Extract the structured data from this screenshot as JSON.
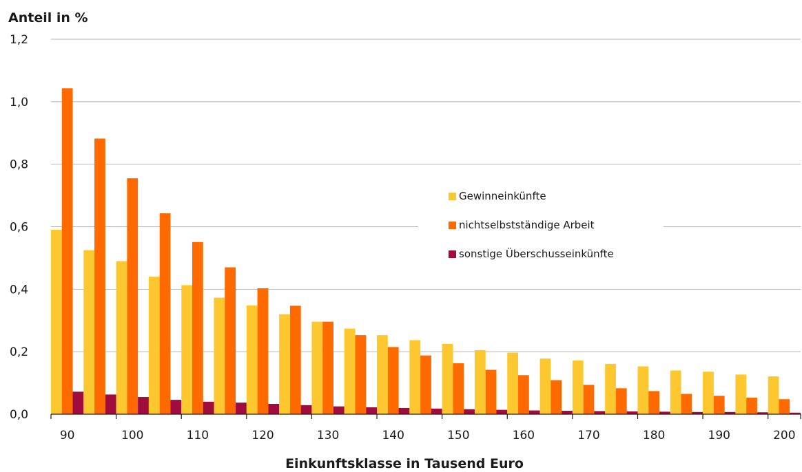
{
  "chart_data": {
    "type": "bar",
    "title": "",
    "ylabel": "Anteil in %",
    "xlabel": "Einkunftsklasse in Tausend Euro",
    "ylim": [
      0,
      1.2
    ],
    "yticks": [
      0.0,
      0.2,
      0.4,
      0.6,
      0.8,
      1.0,
      1.2
    ],
    "ytick_labels": [
      "0,0",
      "0,2",
      "0,4",
      "0,6",
      "0,8",
      "1,0",
      "1,2"
    ],
    "x": [
      90,
      95,
      100,
      105,
      110,
      115,
      120,
      125,
      130,
      135,
      140,
      145,
      150,
      155,
      160,
      165,
      170,
      175,
      180,
      185,
      190,
      195,
      200
    ],
    "xticks": [
      90,
      100,
      110,
      120,
      130,
      140,
      150,
      160,
      170,
      180,
      190,
      200
    ],
    "grid": true,
    "legend_position": "right",
    "series": [
      {
        "name": "Gewinneinkünfte",
        "color": "#fdc82f",
        "values": [
          0.59,
          0.525,
          0.49,
          0.44,
          0.413,
          0.373,
          0.348,
          0.32,
          0.296,
          0.274,
          0.253,
          0.237,
          0.225,
          0.205,
          0.197,
          0.178,
          0.172,
          0.161,
          0.153,
          0.14,
          0.136,
          0.127,
          0.121
        ]
      },
      {
        "name": "nichtselbstständige Arbeit",
        "color": "#ff6a00",
        "values": [
          1.043,
          0.882,
          0.755,
          0.643,
          0.551,
          0.47,
          0.403,
          0.347,
          0.296,
          0.253,
          0.215,
          0.188,
          0.163,
          0.142,
          0.125,
          0.109,
          0.094,
          0.083,
          0.074,
          0.065,
          0.059,
          0.053,
          0.048
        ]
      },
      {
        "name": "sonstige Überschusseinkünfte",
        "color": "#a00c3c",
        "values": [
          0.072,
          0.063,
          0.055,
          0.046,
          0.04,
          0.037,
          0.033,
          0.029,
          0.025,
          0.022,
          0.02,
          0.018,
          0.016,
          0.014,
          0.012,
          0.011,
          0.01,
          0.009,
          0.008,
          0.007,
          0.007,
          0.006,
          0.005
        ]
      }
    ]
  }
}
